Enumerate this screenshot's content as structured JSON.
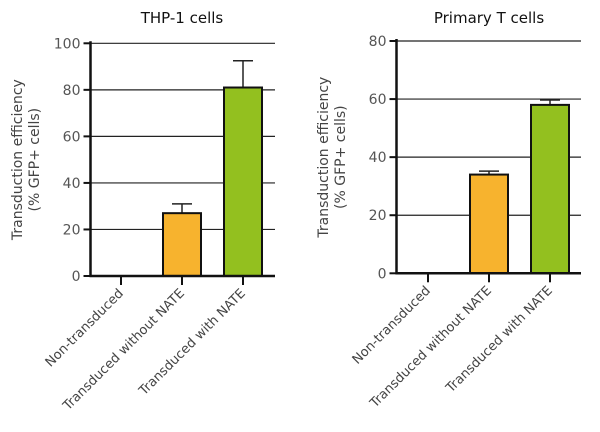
{
  "chart_data": [
    {
      "type": "bar",
      "title": "THP-1 cells",
      "ylabel": [
        "Transduction efficiency",
        "(% GFP+ cells)"
      ],
      "categories": [
        "Non-transduced",
        "Transduced without NATE",
        "Transduced with NATE"
      ],
      "values": [
        0,
        27,
        81
      ],
      "error_upper": [
        0,
        31,
        92.5
      ],
      "colors": [
        "#ffffff",
        "#f7b32e",
        "#93c01f"
      ],
      "ylim": [
        0,
        100
      ],
      "yticks": [
        0,
        20,
        40,
        60,
        80,
        100
      ],
      "grid": true
    },
    {
      "type": "bar",
      "title": "Primary T cells",
      "ylabel": [
        "Transduction efficiency",
        "(% GFP+ cells)"
      ],
      "categories": [
        "Non-transduced",
        "Transduced without NATE",
        "Transduced with NATE"
      ],
      "values": [
        0,
        34,
        58
      ],
      "error_upper": [
        0,
        35.2,
        59.7
      ],
      "colors": [
        "#ffffff",
        "#f7b32e",
        "#93c01f"
      ],
      "ylim": [
        0,
        80
      ],
      "yticks": [
        0,
        20,
        40,
        60,
        80
      ],
      "grid": true
    }
  ]
}
